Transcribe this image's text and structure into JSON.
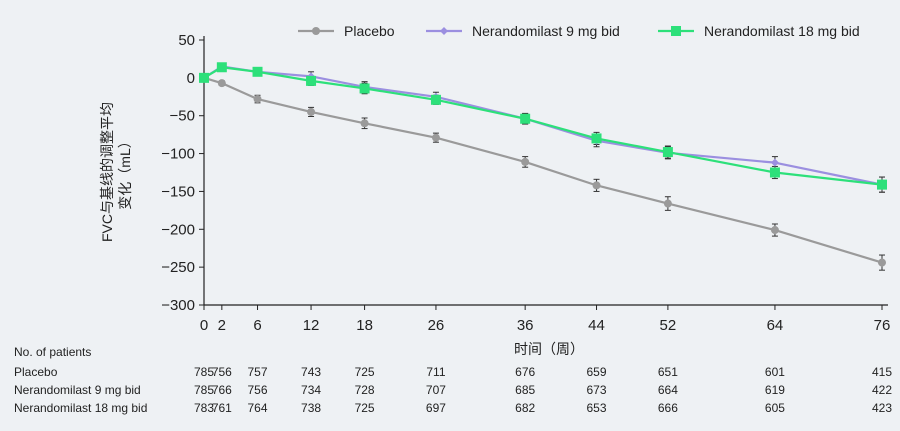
{
  "chart_data": {
    "type": "line",
    "xlabel": "时间（周）",
    "ylabel_line1": "FVC与基线的调整平均",
    "ylabel_line2": "变化（mL）",
    "x": [
      0,
      2,
      6,
      12,
      18,
      26,
      36,
      44,
      52,
      64,
      76
    ],
    "xlim": [
      0,
      76
    ],
    "ylim": [
      -300,
      50
    ],
    "yticks": [
      50,
      0,
      -50,
      -100,
      -150,
      -200,
      -250,
      -300
    ],
    "grid": false,
    "legend_position": "top",
    "series": [
      {
        "name": "Placebo",
        "color": "#9a9a9a",
        "marker": "circle",
        "values": [
          0,
          -7,
          -28,
          -45,
          -60,
          -79,
          -111,
          -142,
          -166,
          -201,
          -244
        ],
        "error": [
          0,
          3,
          5,
          6,
          7,
          6,
          7,
          8,
          9,
          8,
          10
        ]
      },
      {
        "name": "Nerandomilast 9 mg bid",
        "color": "#9b8fe0",
        "marker": "diamond",
        "values": [
          0,
          15,
          8,
          2,
          -12,
          -25,
          -54,
          -83,
          -99,
          -112,
          -141
        ],
        "error": [
          0,
          3,
          4,
          6,
          7,
          6,
          7,
          8,
          8,
          8,
          10
        ]
      },
      {
        "name": "Nerandomilast 18 mg bid",
        "color": "#2de07a",
        "marker": "square",
        "values": [
          0,
          14,
          8,
          -4,
          -14,
          -29,
          -54,
          -80,
          -98,
          -125,
          -141
        ],
        "error": [
          0,
          3,
          4,
          6,
          7,
          6,
          7,
          8,
          8,
          8,
          10
        ]
      }
    ],
    "table": {
      "header": "No. of patients",
      "rows": [
        {
          "label": "Placebo",
          "values": [
            "785",
            "756",
            "757",
            "743",
            "725",
            "711",
            "676",
            "659",
            "651",
            "601",
            "415"
          ]
        },
        {
          "label": "Nerandomilast 9 mg bid",
          "values": [
            "785",
            "766",
            "756",
            "734",
            "728",
            "707",
            "685",
            "673",
            "664",
            "619",
            "422"
          ]
        },
        {
          "label": "Nerandomilast 18 mg bid",
          "values": [
            "783",
            "761",
            "764",
            "738",
            "725",
            "697",
            "682",
            "653",
            "666",
            "605",
            "423"
          ]
        }
      ]
    }
  }
}
